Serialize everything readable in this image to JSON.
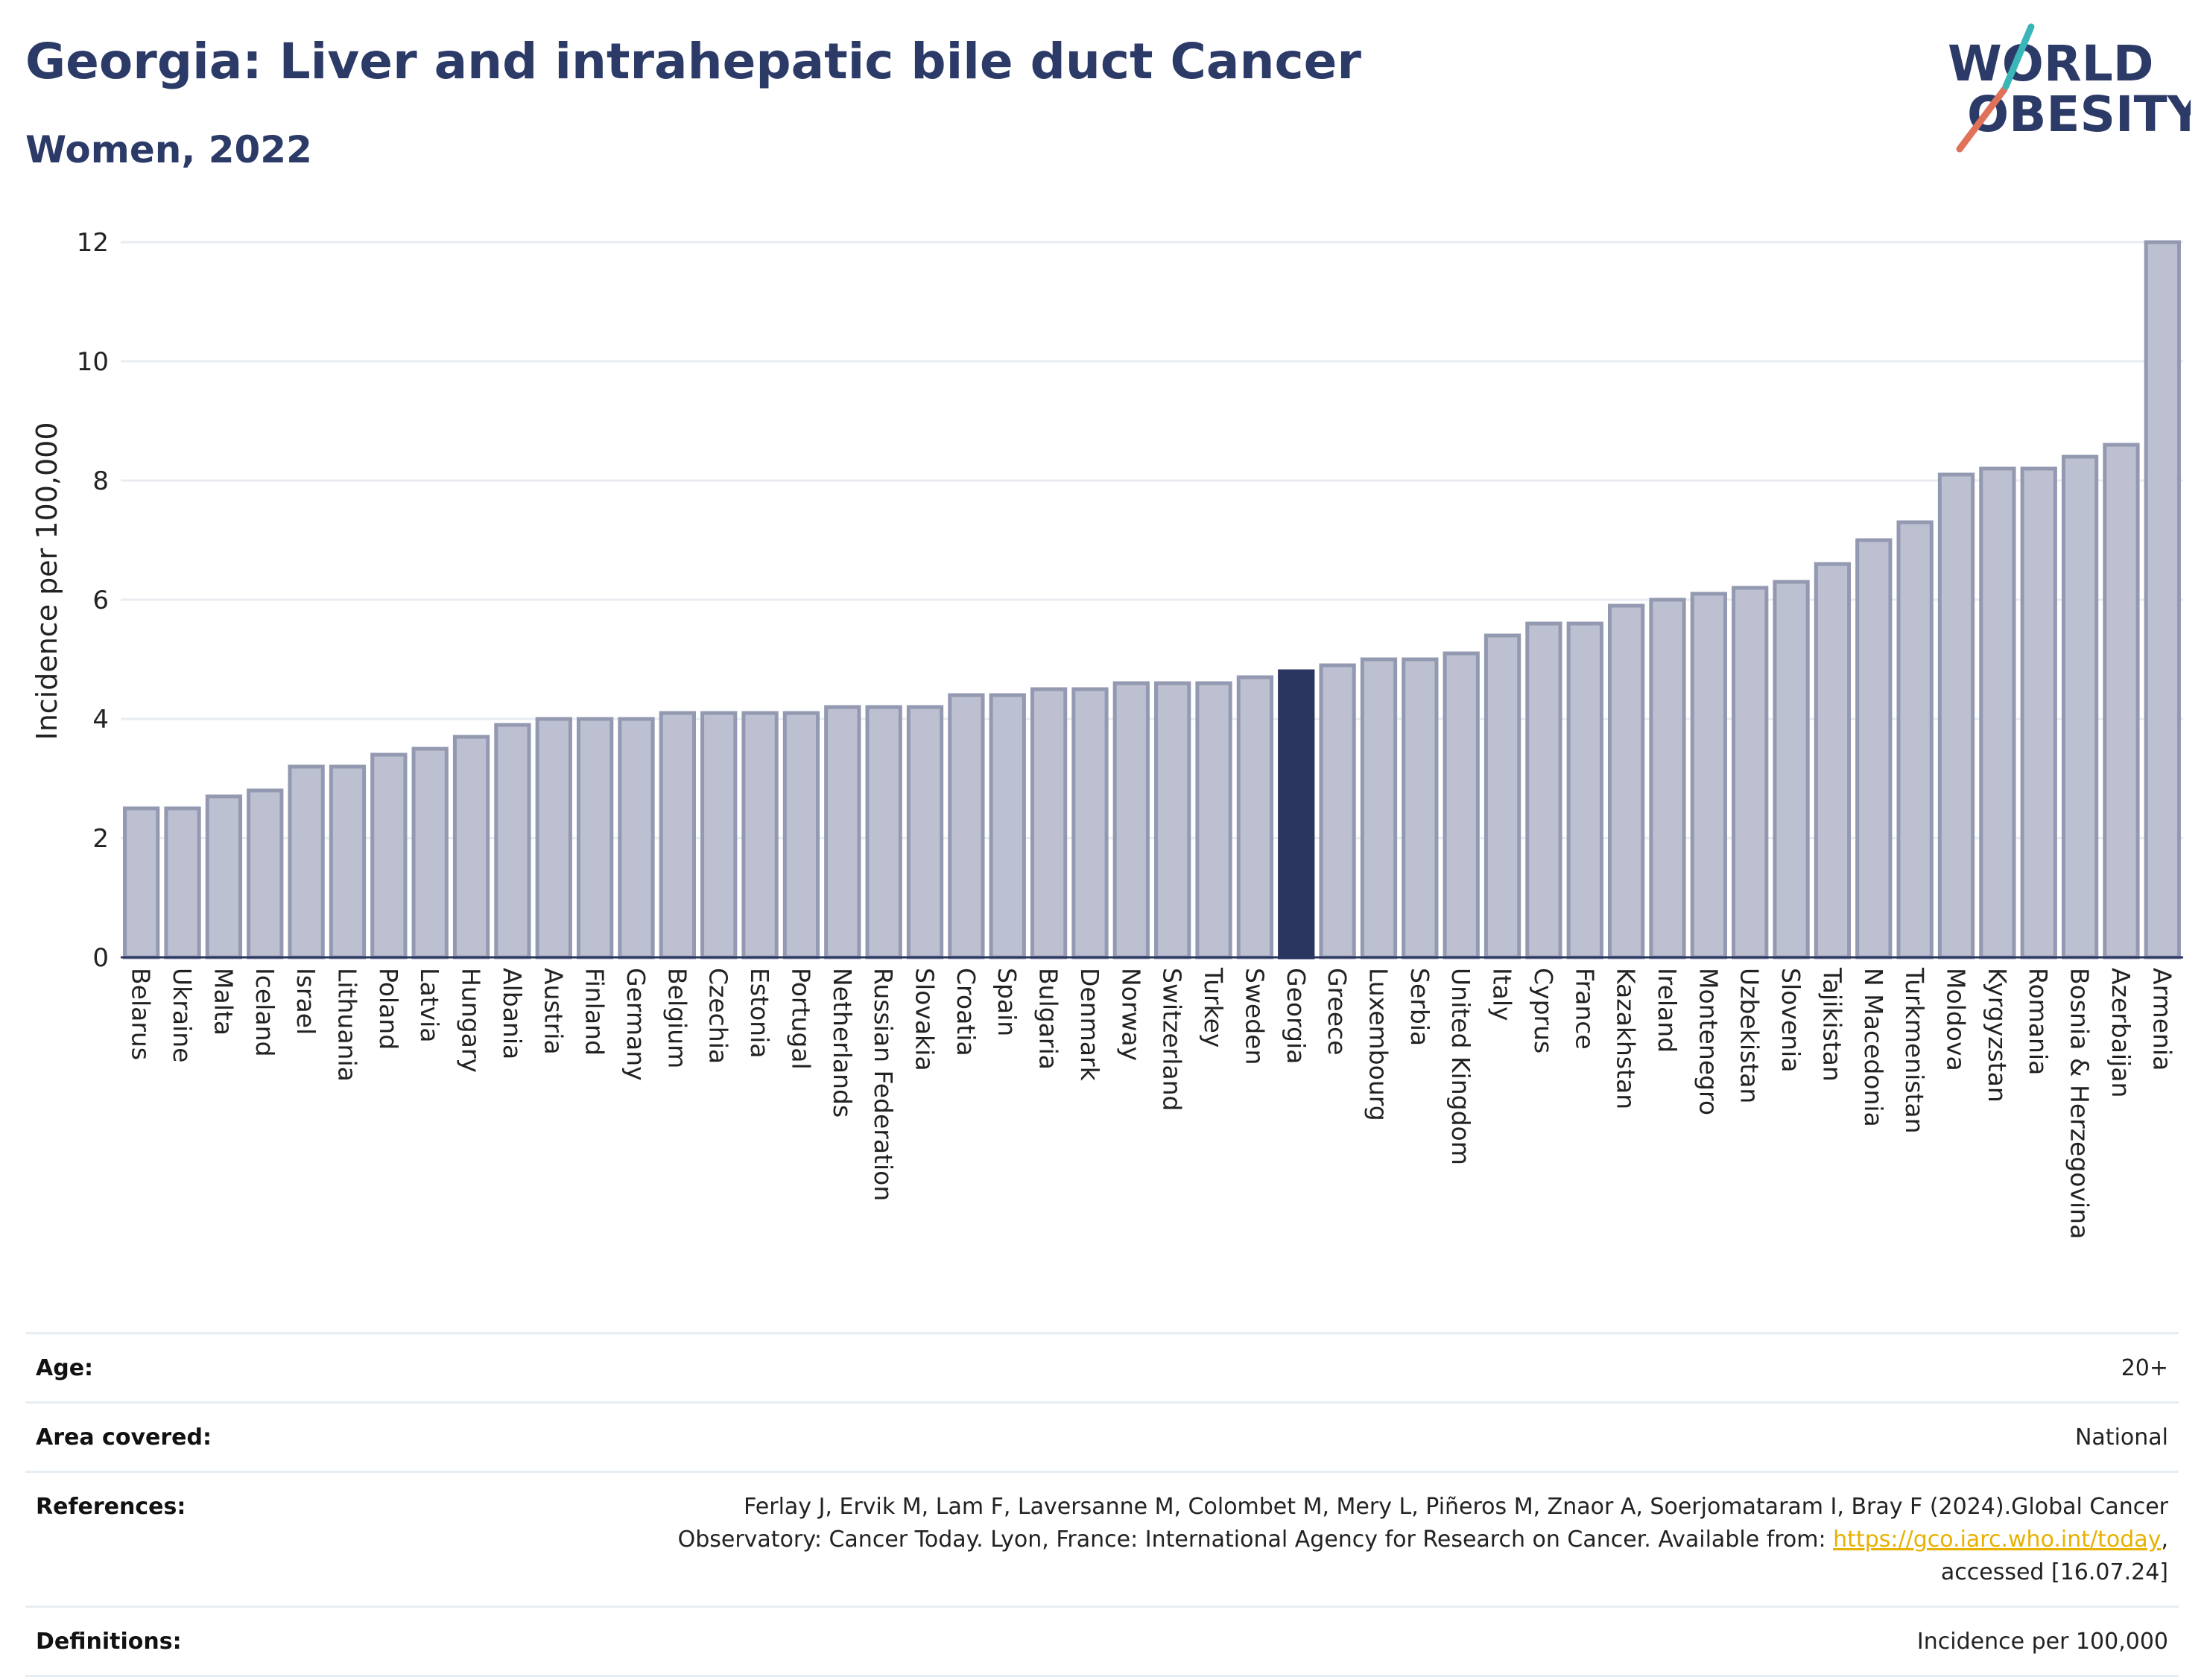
{
  "header": {
    "title": "Georgia: Liver and intrahepatic bile duct Cancer",
    "subtitle": "Women, 2022"
  },
  "logo": {
    "line1": "WORLD",
    "line2": "OBESITY"
  },
  "colors": {
    "bar": "#bcc0d0",
    "bar_border": "#9399b1",
    "highlight": "#2b3660",
    "grid": "#e8ecf1",
    "title": "#2b3a67",
    "logo_slash_red": "#e0725a",
    "logo_slash_teal": "#3ab5b8",
    "link": "#e8b100"
  },
  "chart_data": {
    "type": "bar",
    "title": "Georgia: Liver and intrahepatic bile duct Cancer",
    "subtitle": "Women, 2022",
    "xlabel": "",
    "ylabel": "Incidence per 100,000",
    "ylim": [
      0,
      12
    ],
    "yticks": [
      0,
      2,
      4,
      6,
      8,
      10,
      12
    ],
    "grid": true,
    "highlight": "Georgia",
    "categories": [
      "Belarus",
      "Ukraine",
      "Malta",
      "Iceland",
      "Israel",
      "Lithuania",
      "Poland",
      "Latvia",
      "Hungary",
      "Albania",
      "Austria",
      "Finland",
      "Germany",
      "Belgium",
      "Czechia",
      "Estonia",
      "Portugal",
      "Netherlands",
      "Russian Federation",
      "Slovakia",
      "Croatia",
      "Spain",
      "Bulgaria",
      "Denmark",
      "Norway",
      "Switzerland",
      "Turkey",
      "Sweden",
      "Georgia",
      "Greece",
      "Luxembourg",
      "Serbia",
      "United Kingdom",
      "Italy",
      "Cyprus",
      "France",
      "Kazakhstan",
      "Ireland",
      "Montenegro",
      "Uzbekistan",
      "Slovenia",
      "Tajikistan",
      "N Macedonia",
      "Turkmenistan",
      "Moldova",
      "Kyrgyzstan",
      "Romania",
      "Bosnia & Herzegovina",
      "Azerbaijan",
      "Armenia"
    ],
    "values": [
      2.5,
      2.5,
      2.7,
      2.8,
      3.2,
      3.2,
      3.4,
      3.5,
      3.7,
      3.9,
      4.0,
      4.0,
      4.0,
      4.1,
      4.1,
      4.1,
      4.1,
      4.2,
      4.2,
      4.2,
      4.4,
      4.4,
      4.5,
      4.5,
      4.6,
      4.6,
      4.6,
      4.7,
      4.8,
      4.9,
      5.0,
      5.0,
      5.1,
      5.4,
      5.6,
      5.6,
      5.9,
      6.0,
      6.1,
      6.2,
      6.3,
      6.6,
      7.0,
      7.3,
      8.1,
      8.2,
      8.2,
      8.4,
      8.6,
      12.0
    ]
  },
  "info": {
    "age": {
      "label": "Age:",
      "value": "20+"
    },
    "area": {
      "label": "Area covered:",
      "value": "National"
    },
    "references": {
      "label": "References:",
      "text": "Ferlay J, Ervik M, Lam F, Laversanne M, Colombet M, Mery L, Piñeros M, Znaor A, Soerjomataram I, Bray F (2024).Global Cancer Observatory: Cancer Today. Lyon, France: International Agency for Research on Cancer. Available from: ",
      "link": "https://gco.iarc.who.int/today",
      "suffix": ", accessed [16.07.24]"
    },
    "definitions": {
      "label": "Definitions:",
      "value": "Incidence per 100,000"
    }
  }
}
